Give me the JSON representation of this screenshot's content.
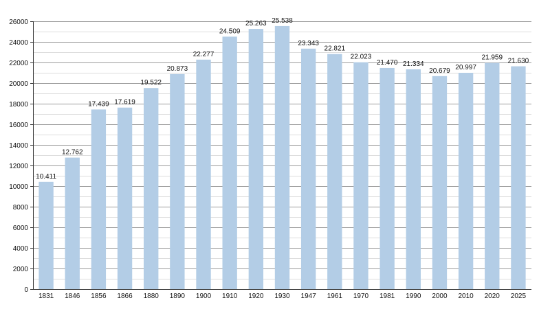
{
  "chart_data": {
    "type": "bar",
    "categories": [
      "1831",
      "1846",
      "1856",
      "1866",
      "1880",
      "1890",
      "1900",
      "1910",
      "1920",
      "1930",
      "1947",
      "1961",
      "1970",
      "1981",
      "1990",
      "2000",
      "2010",
      "2020",
      "2025"
    ],
    "values": [
      10411,
      12762,
      17439,
      17619,
      19522,
      20873,
      22277,
      24509,
      25263,
      25538,
      23343,
      22821,
      22023,
      21470,
      21334,
      20679,
      20997,
      21959,
      21630
    ],
    "data_labels": [
      "10.411",
      "12.762",
      "17.439",
      "17.619",
      "19.522",
      "20.873",
      "22.277",
      "24.509",
      "25.263",
      "25.538",
      "23.343",
      "22.821",
      "22.023",
      "21.470",
      "21.334",
      "20.679",
      "20.997",
      "21.959",
      "21.630"
    ],
    "y_ticks": [
      "0",
      "2000",
      "4000",
      "6000",
      "8000",
      "10000",
      "12000",
      "14000",
      "16000",
      "18000",
      "20000",
      "22000",
      "24000",
      "26000"
    ],
    "ylim": [
      0,
      26000
    ],
    "grid": true,
    "colors": {
      "bar": "#b3cde6",
      "major_grid": "#999999",
      "minor_grid": "#dddddd",
      "axis": "#333333"
    }
  }
}
